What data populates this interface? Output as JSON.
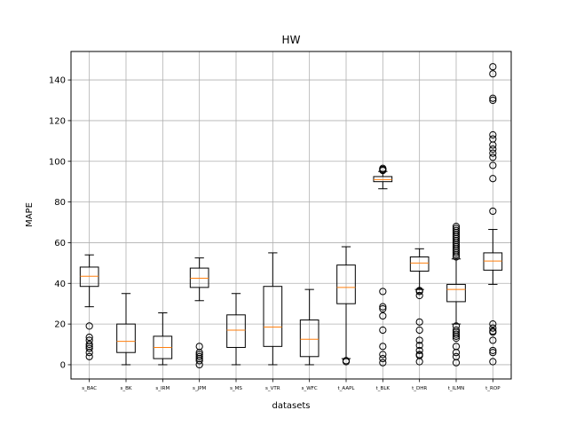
{
  "chart_data": {
    "type": "box",
    "title": "HW",
    "xlabel": "datasets",
    "ylabel": "MAPE",
    "ylim": [
      -7,
      154
    ],
    "yticks": [
      0,
      20,
      40,
      60,
      80,
      100,
      120,
      140
    ],
    "grid": true,
    "colors": {
      "box": "#000000",
      "median": "#ff7f0e",
      "grid": "#b0b0b0"
    },
    "categories": [
      "s_BAC",
      "s_BK",
      "s_IRM",
      "s_JPM",
      "s_MS",
      "s_VTR",
      "s_WFC",
      "t_AAPL",
      "t_BLK",
      "t_DHR",
      "t_ILMN",
      "t_ROP"
    ],
    "boxes": [
      {
        "whislo": 28.5,
        "q1": 38.5,
        "med": 43.5,
        "q3": 48,
        "whishi": 54,
        "fliers": [
          19,
          13.5,
          12,
          10,
          9,
          8,
          6,
          4
        ]
      },
      {
        "whislo": 0,
        "q1": 6,
        "med": 11.5,
        "q3": 20,
        "whishi": 35,
        "fliers": []
      },
      {
        "whislo": 0,
        "q1": 3,
        "med": 8.5,
        "q3": 14,
        "whishi": 25.5,
        "fliers": []
      },
      {
        "whislo": 31.5,
        "q1": 38,
        "med": 42.5,
        "q3": 47.5,
        "whishi": 52.5,
        "fliers": [
          9,
          6,
          5,
          4,
          3,
          2,
          0
        ]
      },
      {
        "whislo": 0,
        "q1": 8.5,
        "med": 17,
        "q3": 24.5,
        "whishi": 35,
        "fliers": []
      },
      {
        "whislo": 0,
        "q1": 9,
        "med": 18.5,
        "q3": 38.5,
        "whishi": 55,
        "fliers": []
      },
      {
        "whislo": 0,
        "q1": 4,
        "med": 12.5,
        "q3": 22,
        "whishi": 37,
        "fliers": []
      },
      {
        "whislo": 3,
        "q1": 30,
        "med": 38,
        "q3": 49,
        "whishi": 58,
        "fliers": [
          2,
          1.5
        ]
      },
      {
        "whislo": 86.5,
        "q1": 90,
        "med": 91,
        "q3": 92.5,
        "whishi": 95,
        "fliers": [
          96,
          96.5,
          95.5,
          36,
          28.5,
          27.5,
          24,
          17,
          9,
          5,
          3,
          1
        ]
      },
      {
        "whislo": 37,
        "q1": 46,
        "med": 50,
        "q3": 53,
        "whishi": 57,
        "fliers": [
          36.5,
          36,
          34,
          21,
          17,
          12,
          9.5,
          7,
          5,
          4.5,
          1.5
        ]
      },
      {
        "whislo": 20,
        "q1": 31,
        "med": 37,
        "q3": 39.5,
        "whishi": 52,
        "fliers": [
          68,
          67,
          66,
          65,
          64,
          63,
          62,
          61,
          60,
          59,
          58,
          57,
          56,
          55,
          54,
          53,
          19,
          17,
          16,
          15,
          14,
          13,
          9,
          6,
          4,
          1
        ]
      },
      {
        "whislo": 39.5,
        "q1": 46.5,
        "med": 51,
        "q3": 55,
        "whishi": 66.5,
        "fliers": [
          146.5,
          143,
          131,
          130,
          113,
          111,
          108,
          106,
          104,
          102,
          98,
          91.5,
          75.5,
          20,
          18,
          16.5,
          16,
          12,
          7,
          6,
          1.5
        ]
      }
    ]
  }
}
